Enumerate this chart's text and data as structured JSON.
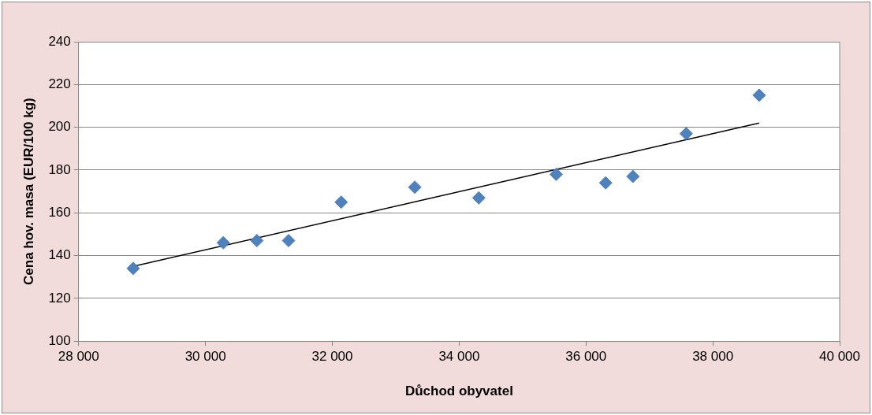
{
  "chart_data": {
    "type": "scatter",
    "xlabel": "Důchod obyvatel",
    "ylabel": "Cena hov. masa (EUR/100 kg)",
    "xlim": [
      28000,
      40000
    ],
    "xticks": [
      {
        "value": 28000,
        "label": "28 000"
      },
      {
        "value": 30000,
        "label": "30 000"
      },
      {
        "value": 32000,
        "label": "32 000"
      },
      {
        "value": 34000,
        "label": "34 000"
      },
      {
        "value": 36000,
        "label": "36 000"
      },
      {
        "value": 38000,
        "label": "38 000"
      },
      {
        "value": 40000,
        "label": "40 000"
      }
    ],
    "ylim": [
      100,
      240
    ],
    "yticks": [
      100,
      120,
      140,
      160,
      180,
      200,
      220,
      240
    ],
    "grid": "y",
    "legend": false,
    "marker": "diamond",
    "series": [
      {
        "color": "#4f81bd",
        "x": [
          28860,
          30280,
          30810,
          31310,
          32140,
          33300,
          34310,
          35530,
          36310,
          36740,
          37580,
          38730
        ],
        "values": [
          134,
          146,
          147,
          147,
          165,
          172,
          167,
          178,
          174,
          177,
          197,
          215
        ]
      },
      {
        "type": "line",
        "marker": "none",
        "color": "#000000",
        "x": [
          28860,
          38730
        ],
        "values": [
          135,
          202
        ]
      }
    ]
  }
}
